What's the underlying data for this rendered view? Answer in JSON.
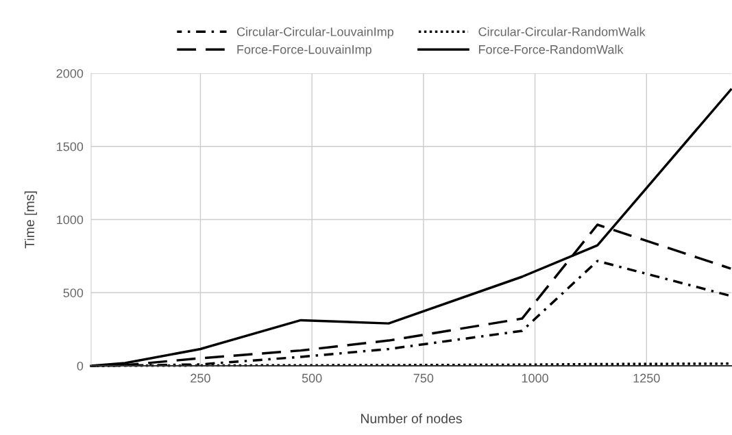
{
  "chart_data": {
    "type": "line",
    "xlabel": "Number of nodes",
    "ylabel": "Time [ms]",
    "x": [
      5,
      81,
      250,
      475,
      672,
      971,
      1140,
      1439
    ],
    "series": [
      {
        "name": "Circular-Circular-LouvainImp",
        "color": "#000000",
        "line_style": "dashdot",
        "values": [
          0,
          2,
          10,
          61,
          115,
          239,
          717,
          478
        ]
      },
      {
        "name": "Circular-Circular-RandomWalk",
        "color": "#000000",
        "line_style": "dotted",
        "values": [
          0,
          1,
          2,
          4,
          5,
          8,
          12,
          15
        ]
      },
      {
        "name": "Force-Force-LouvainImp",
        "color": "#000000",
        "line_style": "dashed",
        "values": [
          0,
          5,
          52,
          105,
          173,
          323,
          965,
          665
        ]
      },
      {
        "name": "Force-Force-RandomWalk",
        "color": "#000000",
        "line_style": "solid",
        "values": [
          0,
          19,
          115,
          312,
          290,
          609,
          824,
          1888
        ]
      }
    ],
    "xlim": [
      5,
      1440
    ],
    "ylim": [
      0,
      2000
    ],
    "xticks": [
      250,
      500,
      750,
      1000,
      1250
    ],
    "yticks": [
      0,
      500,
      1000,
      1500,
      2000
    ],
    "grid": true,
    "legend": "top",
    "marker": "none"
  }
}
